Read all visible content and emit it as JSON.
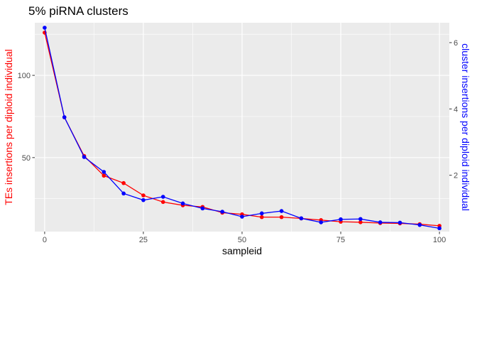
{
  "chart_data": {
    "type": "line",
    "title": "5% piRNA clusters",
    "xlabel": "sampleid",
    "ylabel_left": "TEs insertions per diploid individual",
    "ylabel_right": "cluster insertions per diploid individual",
    "x": [
      0,
      5,
      10,
      15,
      20,
      25,
      30,
      35,
      40,
      45,
      50,
      55,
      60,
      65,
      70,
      75,
      80,
      85,
      90,
      95,
      100
    ],
    "xlim": [
      -2.5,
      102.5
    ],
    "x_ticks": [
      0,
      25,
      50,
      75,
      100
    ],
    "ylim_left": [
      5,
      132
    ],
    "y_ticks_left": [
      50,
      100
    ],
    "ylim_right": [
      0.3,
      6.6
    ],
    "y_ticks_right": [
      2,
      4,
      6
    ],
    "grid": true,
    "series": [
      {
        "axis": "left",
        "color": "#ff0000",
        "values": [
          126,
          74.5,
          51,
          39,
          34.5,
          27,
          23,
          21,
          20,
          16.5,
          15.5,
          13.8,
          13.8,
          13,
          12,
          11,
          10.7,
          10.2,
          10,
          9.5,
          8.5
        ]
      },
      {
        "axis": "right",
        "color": "#0000ff",
        "values": [
          6.45,
          3.75,
          2.55,
          2.1,
          1.45,
          1.25,
          1.35,
          1.15,
          1.0,
          0.9,
          0.75,
          0.85,
          0.92,
          0.7,
          0.58,
          0.67,
          0.68,
          0.58,
          0.57,
          0.5,
          0.4
        ]
      }
    ]
  }
}
